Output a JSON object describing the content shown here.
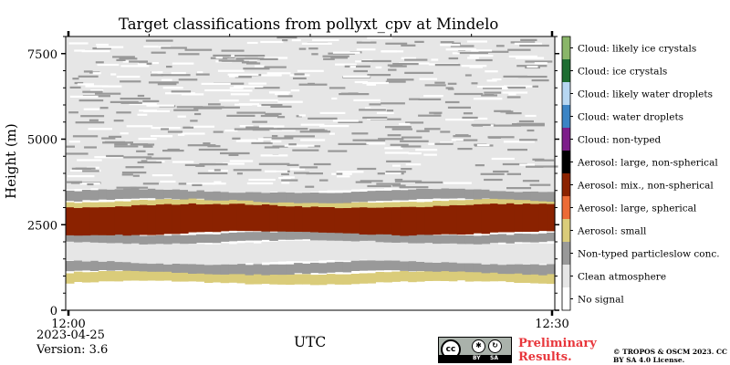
{
  "title": "Target classifications from pollyxt_cpv at Mindelo",
  "date": "2023-04-25",
  "version": "Version: 3.6",
  "preliminary": "Preliminary Results.",
  "copyright": "© TROPOS & OSCM 2023. CC BY SA 4.0 License.",
  "license_badge": {
    "cc": "cc",
    "by": "BY",
    "sa": "SA"
  },
  "chart_data": {
    "type": "heatmap",
    "title": "Target classifications from pollyxt_cpv at Mindelo",
    "xlabel": "UTC",
    "ylabel": "Height (m)",
    "x_ticks": [
      "12:00",
      "12:30"
    ],
    "y_ticks": [
      0,
      2500,
      5000,
      7500
    ],
    "xlim": [
      "12:00",
      "12:30"
    ],
    "ylim": [
      0,
      8000
    ],
    "colorbar": [
      {
        "label": "No signal",
        "color": "#ffffff"
      },
      {
        "label": "Clean atmosphere",
        "color": "#e6e6e6"
      },
      {
        "label": "Non-typed particleslow conc.",
        "color": "#999999"
      },
      {
        "label": "Aerosol: small",
        "color": "#dacc7a"
      },
      {
        "label": "Aerosol: large, spherical",
        "color": "#ec6b36"
      },
      {
        "label": "Aerosol: mix., non-spherical",
        "color": "#8b2200"
      },
      {
        "label": "Aerosol: large, non-spherical",
        "color": "#000000"
      },
      {
        "label": "Cloud: non-typed",
        "color": "#7d1e8a"
      },
      {
        "label": "Cloud: water droplets",
        "color": "#3b84c5"
      },
      {
        "label": "Cloud: likely water droplets",
        "color": "#b7d7f2"
      },
      {
        "label": "Cloud: ice crystals",
        "color": "#1d6d31"
      },
      {
        "label": "Cloud: likely ice crystals",
        "color": "#8ab669"
      }
    ],
    "layers": [
      {
        "class": "Aerosol: small",
        "from_m": 800,
        "to_m": 1100
      },
      {
        "class": "Non-typed particleslow conc.",
        "from_m": 1100,
        "to_m": 1400
      },
      {
        "class": "Clean atmosphere",
        "from_m": 1400,
        "to_m": 2000
      },
      {
        "class": "Non-typed particleslow conc.",
        "from_m": 2000,
        "to_m": 2250
      },
      {
        "class": "Aerosol: mix., non-spherical",
        "from_m": 2250,
        "to_m": 3150
      },
      {
        "class": "Aerosol: small",
        "from_m": 3050,
        "to_m": 3200
      },
      {
        "class": "Non-typed particleslow conc.",
        "from_m": 3200,
        "to_m": 3500
      },
      {
        "class": "Clean atmosphere",
        "from_m": 3500,
        "to_m": 8000
      }
    ]
  }
}
